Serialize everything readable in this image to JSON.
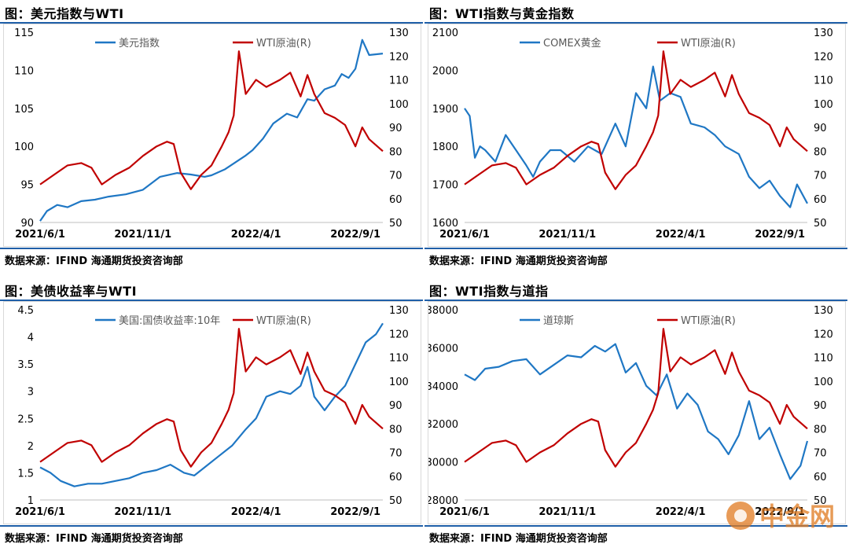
{
  "panels": [
    {
      "title": "图：美元指数与WTI",
      "source": "数据来源：IFIND   海通期货投资咨询部",
      "chart_data": {
        "type": "line",
        "xlabel": "",
        "ylabel": "",
        "y2label": "",
        "x_ticks": [
          "2021/6/1",
          "2021/11/1",
          "2022/4/1",
          "2022/9/1"
        ],
        "ylim": [
          90,
          115
        ],
        "yticks": [
          90,
          95,
          100,
          105,
          110,
          115
        ],
        "y2lim": [
          50,
          130
        ],
        "y2ticks": [
          50,
          60,
          70,
          80,
          90,
          100,
          110,
          120,
          130
        ],
        "legend": "top",
        "series": [
          {
            "name": "美元指数",
            "axis": "left",
            "color": "#1f77c4",
            "x": [
              0,
              0.02,
              0.05,
              0.08,
              0.12,
              0.16,
              0.2,
              0.25,
              0.3,
              0.35,
              0.4,
              0.44,
              0.48,
              0.5,
              0.54,
              0.58,
              0.6,
              0.62,
              0.65,
              0.68,
              0.72,
              0.75,
              0.78,
              0.8,
              0.83,
              0.86,
              0.88,
              0.9,
              0.92,
              0.94,
              0.96,
              1.0
            ],
            "values": [
              90.2,
              91.5,
              92.3,
              92.0,
              92.8,
              93.0,
              93.4,
              93.7,
              94.3,
              96.0,
              96.5,
              96.3,
              96.0,
              96.2,
              97.0,
              98.2,
              98.8,
              99.5,
              101.0,
              103.0,
              104.3,
              103.8,
              106.2,
              106.0,
              107.5,
              108.0,
              109.5,
              109.0,
              110.2,
              114.0,
              112.0,
              112.2
            ]
          },
          {
            "name": "WTI原油(R)",
            "axis": "right",
            "color": "#c00000",
            "x": [
              0,
              0.04,
              0.08,
              0.12,
              0.15,
              0.18,
              0.22,
              0.26,
              0.3,
              0.34,
              0.37,
              0.39,
              0.41,
              0.44,
              0.47,
              0.5,
              0.53,
              0.55,
              0.565,
              0.58,
              0.6,
              0.63,
              0.66,
              0.7,
              0.73,
              0.76,
              0.78,
              0.8,
              0.83,
              0.86,
              0.89,
              0.92,
              0.94,
              0.96,
              1.0
            ],
            "values": [
              66,
              70,
              74,
              75,
              73,
              66,
              70,
              73,
              78,
              82,
              84,
              83,
              71,
              64,
              70,
              74,
              82,
              88,
              95,
              122,
              104,
              110,
              107,
              110,
              113,
              103,
              112,
              104,
              96,
              94,
              91,
              82,
              90,
              85,
              80
            ]
          }
        ]
      }
    },
    {
      "title": "图：WTI指数与黄金指数",
      "source": "数据来源：IFIND   海通期货投资咨询部",
      "chart_data": {
        "type": "line",
        "xlabel": "",
        "ylabel": "",
        "y2label": "",
        "x_ticks": [
          "2021/6/1",
          "2021/11/1",
          "2022/4/1",
          "2022/9/1"
        ],
        "ylim": [
          1600,
          2100
        ],
        "yticks": [
          1600,
          1700,
          1800,
          1900,
          2000,
          2100
        ],
        "y2lim": [
          50,
          130
        ],
        "y2ticks": [
          50,
          60,
          70,
          80,
          90,
          100,
          110,
          120,
          130
        ],
        "legend": "top",
        "series": [
          {
            "name": "COMEX黄金",
            "axis": "left",
            "color": "#1f77c4",
            "x": [
              0,
              0.015,
              0.03,
              0.045,
              0.06,
              0.09,
              0.12,
              0.15,
              0.18,
              0.2,
              0.22,
              0.25,
              0.28,
              0.32,
              0.36,
              0.4,
              0.44,
              0.47,
              0.5,
              0.53,
              0.55,
              0.57,
              0.6,
              0.63,
              0.66,
              0.7,
              0.73,
              0.76,
              0.8,
              0.83,
              0.86,
              0.89,
              0.92,
              0.95,
              0.97,
              1.0
            ],
            "values": [
              1900,
              1880,
              1770,
              1800,
              1790,
              1760,
              1830,
              1790,
              1750,
              1720,
              1760,
              1790,
              1790,
              1760,
              1800,
              1780,
              1860,
              1800,
              1940,
              1900,
              2010,
              1920,
              1940,
              1930,
              1860,
              1850,
              1830,
              1800,
              1780,
              1720,
              1690,
              1710,
              1670,
              1640,
              1700,
              1650
            ]
          },
          {
            "name": "WTI原油(R)",
            "axis": "right",
            "color": "#c00000",
            "x": [
              0,
              0.04,
              0.08,
              0.12,
              0.15,
              0.18,
              0.22,
              0.26,
              0.3,
              0.34,
              0.37,
              0.39,
              0.41,
              0.44,
              0.47,
              0.5,
              0.53,
              0.55,
              0.565,
              0.58,
              0.6,
              0.63,
              0.66,
              0.7,
              0.73,
              0.76,
              0.78,
              0.8,
              0.83,
              0.86,
              0.89,
              0.92,
              0.94,
              0.96,
              1.0
            ],
            "values": [
              66,
              70,
              74,
              75,
              73,
              66,
              70,
              73,
              78,
              82,
              84,
              83,
              71,
              64,
              70,
              74,
              82,
              88,
              95,
              122,
              104,
              110,
              107,
              110,
              113,
              103,
              112,
              104,
              96,
              94,
              91,
              82,
              90,
              85,
              80
            ]
          }
        ]
      }
    },
    {
      "title": "图：美债收益率与WTI",
      "source": "数据来源：IFIND   海通期货投资咨询部",
      "chart_data": {
        "type": "line",
        "xlabel": "",
        "ylabel": "",
        "y2label": "",
        "x_ticks": [
          "2021/6/1",
          "2021/11/1",
          "2022/4/1",
          "2022/9/1"
        ],
        "ylim": [
          1,
          4.5
        ],
        "yticks": [
          "1",
          "1.5",
          "2",
          "2.5",
          "3",
          "3.5",
          "4",
          "4.5"
        ],
        "y2lim": [
          50,
          130
        ],
        "y2ticks": [
          50,
          60,
          70,
          80,
          90,
          100,
          110,
          120,
          130
        ],
        "legend": "top",
        "series": [
          {
            "name": "美国:国债收益率:10年",
            "axis": "left",
            "color": "#1f77c4",
            "x": [
              0,
              0.03,
              0.06,
              0.1,
              0.14,
              0.18,
              0.22,
              0.26,
              0.3,
              0.34,
              0.38,
              0.42,
              0.45,
              0.48,
              0.52,
              0.56,
              0.6,
              0.63,
              0.66,
              0.7,
              0.73,
              0.76,
              0.78,
              0.8,
              0.83,
              0.86,
              0.89,
              0.92,
              0.95,
              0.98,
              1.0
            ],
            "values": [
              1.6,
              1.5,
              1.35,
              1.25,
              1.3,
              1.3,
              1.35,
              1.4,
              1.5,
              1.55,
              1.65,
              1.5,
              1.45,
              1.6,
              1.8,
              2.0,
              2.3,
              2.5,
              2.9,
              3.0,
              2.95,
              3.1,
              3.45,
              2.9,
              2.65,
              2.9,
              3.1,
              3.5,
              3.9,
              4.05,
              4.25
            ]
          },
          {
            "name": "WTI原油(R)",
            "axis": "right",
            "color": "#c00000",
            "x": [
              0,
              0.04,
              0.08,
              0.12,
              0.15,
              0.18,
              0.22,
              0.26,
              0.3,
              0.34,
              0.37,
              0.39,
              0.41,
              0.44,
              0.47,
              0.5,
              0.53,
              0.55,
              0.565,
              0.58,
              0.6,
              0.63,
              0.66,
              0.7,
              0.73,
              0.76,
              0.78,
              0.8,
              0.83,
              0.86,
              0.89,
              0.92,
              0.94,
              0.96,
              1.0
            ],
            "values": [
              66,
              70,
              74,
              75,
              73,
              66,
              70,
              73,
              78,
              82,
              84,
              83,
              71,
              64,
              70,
              74,
              82,
              88,
              95,
              122,
              104,
              110,
              107,
              110,
              113,
              103,
              112,
              104,
              96,
              94,
              91,
              82,
              90,
              85,
              80
            ]
          }
        ]
      }
    },
    {
      "title": "图：WTI指数与道指",
      "source": "数据来源：IFIND   海通期货投资咨询部",
      "chart_data": {
        "type": "line",
        "xlabel": "",
        "ylabel": "",
        "y2label": "",
        "x_ticks": [
          "2021/6/1",
          "2021/11/1",
          "2022/4/1",
          "2022/9/1"
        ],
        "ylim": [
          28000,
          38000
        ],
        "yticks": [
          28000,
          30000,
          32000,
          34000,
          36000,
          38000
        ],
        "y2lim": [
          50,
          130
        ],
        "y2ticks": [
          50,
          60,
          70,
          80,
          90,
          100,
          110,
          120,
          130
        ],
        "legend": "top",
        "series": [
          {
            "name": "道琼斯",
            "axis": "left",
            "color": "#1f77c4",
            "x": [
              0,
              0.03,
              0.06,
              0.1,
              0.14,
              0.18,
              0.22,
              0.26,
              0.3,
              0.34,
              0.38,
              0.41,
              0.44,
              0.47,
              0.5,
              0.53,
              0.56,
              0.59,
              0.62,
              0.65,
              0.68,
              0.71,
              0.74,
              0.77,
              0.8,
              0.83,
              0.86,
              0.89,
              0.92,
              0.95,
              0.98,
              1.0
            ],
            "values": [
              34600,
              34300,
              34900,
              35000,
              35300,
              35400,
              34600,
              35100,
              35600,
              35500,
              36100,
              35800,
              36200,
              34700,
              35200,
              34000,
              33500,
              34600,
              32800,
              33600,
              33000,
              31600,
              31200,
              30400,
              31400,
              33200,
              31200,
              31800,
              30400,
              29100,
              29800,
              31100
            ]
          },
          {
            "name": "WTI原油(R)",
            "axis": "right",
            "color": "#c00000",
            "x": [
              0,
              0.04,
              0.08,
              0.12,
              0.15,
              0.18,
              0.22,
              0.26,
              0.3,
              0.34,
              0.37,
              0.39,
              0.41,
              0.44,
              0.47,
              0.5,
              0.53,
              0.55,
              0.565,
              0.58,
              0.6,
              0.63,
              0.66,
              0.7,
              0.73,
              0.76,
              0.78,
              0.8,
              0.83,
              0.86,
              0.89,
              0.92,
              0.94,
              0.96,
              1.0
            ],
            "values": [
              66,
              70,
              74,
              75,
              73,
              66,
              70,
              73,
              78,
              82,
              84,
              83,
              71,
              64,
              70,
              74,
              82,
              88,
              95,
              122,
              104,
              110,
              107,
              110,
              113,
              103,
              112,
              104,
              96,
              94,
              91,
              82,
              90,
              85,
              80
            ]
          }
        ]
      }
    }
  ],
  "watermark": {
    "text": "中金网",
    "color": "#e07a20"
  }
}
